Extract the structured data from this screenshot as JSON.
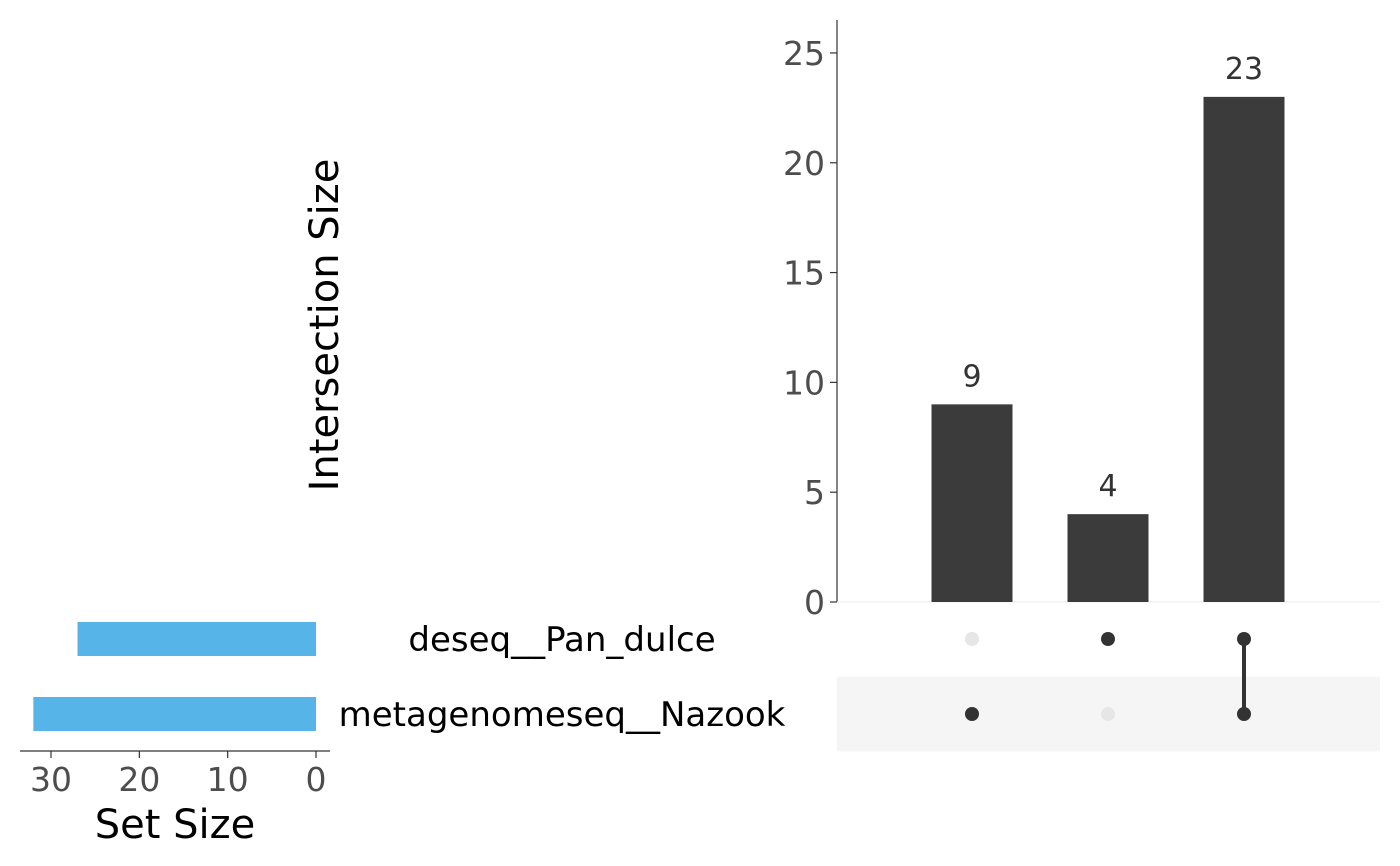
{
  "chart_data": [
    {
      "type": "bar",
      "role": "intersection-size",
      "ylabel": "Intersection Size",
      "ylim": [
        0,
        26.5
      ],
      "yticks": [
        0,
        5,
        10,
        15,
        20,
        25
      ],
      "intersections": [
        {
          "sets": [
            "metagenomeseq__Nazook"
          ],
          "value": 9
        },
        {
          "sets": [
            "deseq__Pan_dulce"
          ],
          "value": 4
        },
        {
          "sets": [
            "deseq__Pan_dulce",
            "metagenomeseq__Nazook"
          ],
          "value": 23
        }
      ],
      "bar_color": "#3b3b3b",
      "grid": false
    },
    {
      "type": "bar",
      "role": "set-size",
      "orientation": "horizontal",
      "xlabel": "Set Size",
      "xlim": [
        0,
        34
      ],
      "xticks": [
        30,
        20,
        10,
        0
      ],
      "reversed": true,
      "sets": [
        {
          "name": "deseq__Pan_dulce",
          "value": 27
        },
        {
          "name": "metagenomeseq__Nazook",
          "value": 32
        }
      ],
      "bar_color": "#56b4e9",
      "grid": false
    }
  ],
  "matrix": {
    "dot_active_color": "#333333",
    "dot_inactive_color": "#e6e6e6",
    "stripe_color": "#f5f5f5"
  }
}
